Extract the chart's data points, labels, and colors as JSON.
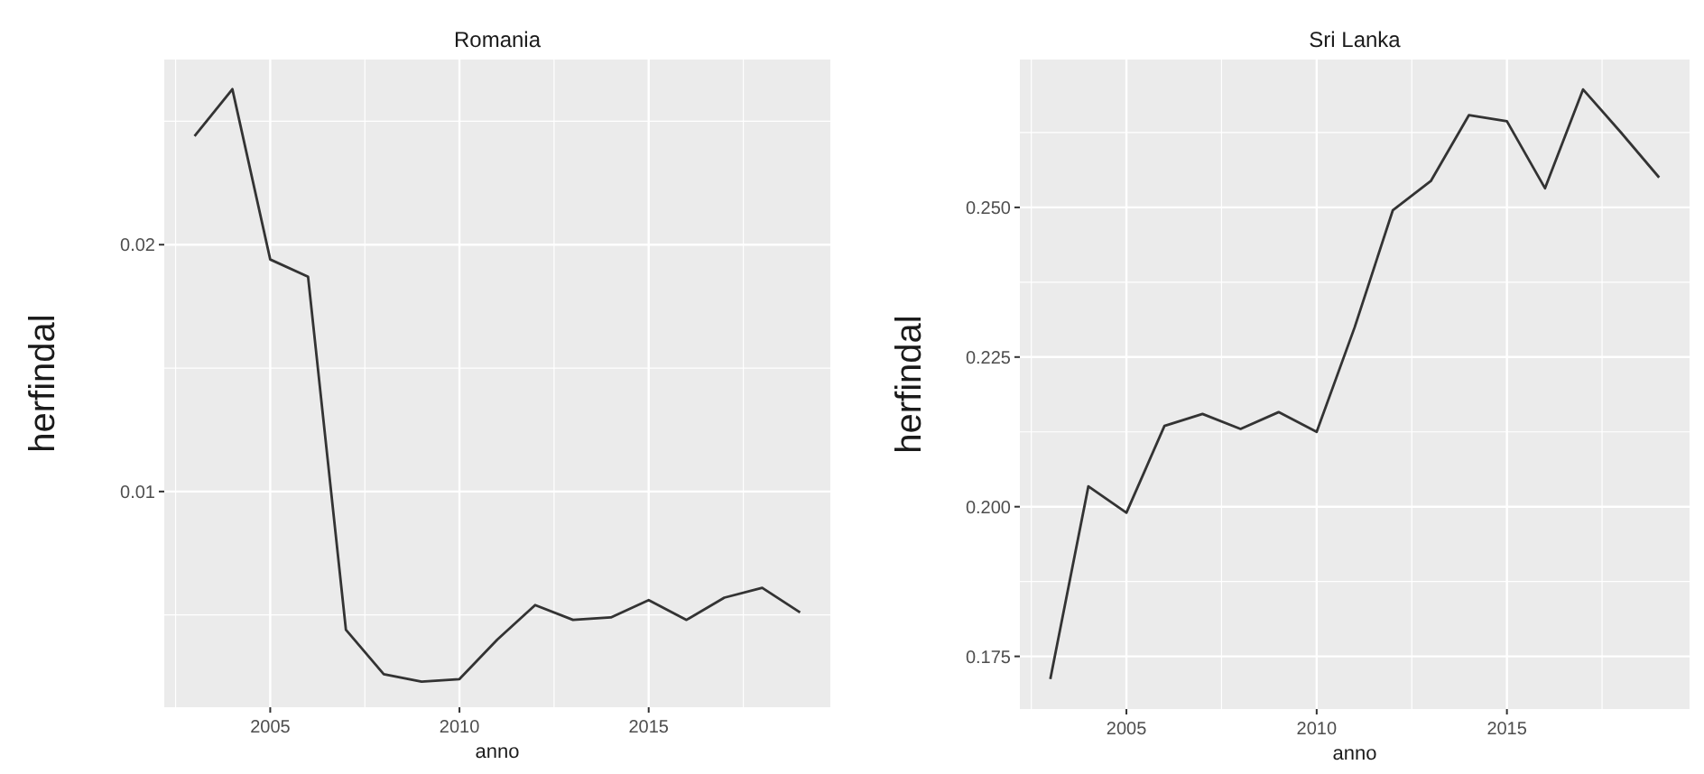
{
  "chart_data": [
    {
      "type": "line",
      "title": "Romania",
      "xlabel": "anno",
      "ylabel": "herfindal",
      "grid": true,
      "color": "#333333",
      "x": [
        2003,
        2004,
        2005,
        2006,
        2007,
        2008,
        2009,
        2010,
        2011,
        2012,
        2013,
        2014,
        2015,
        2016,
        2017,
        2018,
        2019
      ],
      "values": [
        0.0244,
        0.0263,
        0.0194,
        0.0187,
        0.0044,
        0.0026,
        0.0023,
        0.0024,
        0.004,
        0.0054,
        0.0048,
        0.0049,
        0.0056,
        0.0048,
        0.0057,
        0.0061,
        0.0051
      ],
      "xlim": [
        2002.2,
        2019.8
      ],
      "xticks": [
        2005,
        2010,
        2015
      ],
      "ylim": [
        0.00126,
        0.0275
      ],
      "yticks": [
        0.01,
        0.02
      ]
    },
    {
      "type": "line",
      "title": "Sri Lanka",
      "xlabel": "anno",
      "ylabel": "herfindal",
      "grid": true,
      "color": "#333333",
      "x": [
        2003,
        2004,
        2005,
        2006,
        2007,
        2008,
        2009,
        2010,
        2011,
        2012,
        2013,
        2014,
        2015,
        2016,
        2017,
        2018,
        2019
      ],
      "values": [
        0.1712,
        0.2034,
        0.199,
        0.2135,
        0.2155,
        0.213,
        0.2158,
        0.2125,
        0.23,
        0.2495,
        0.2544,
        0.2654,
        0.2644,
        0.2532,
        0.2697,
        0.2625,
        0.255
      ],
      "xlim": [
        2002.2,
        2019.8
      ],
      "xticks": [
        2005,
        2010,
        2015
      ],
      "ylim": [
        0.1662,
        0.2747
      ],
      "yticks": [
        {
          "value": 0.175,
          "label": "0.175"
        },
        {
          "value": 0.2,
          "label": "0.200"
        },
        {
          "value": 0.225,
          "label": "0.225"
        },
        {
          "value": 0.25,
          "label": "0.250"
        }
      ]
    }
  ]
}
